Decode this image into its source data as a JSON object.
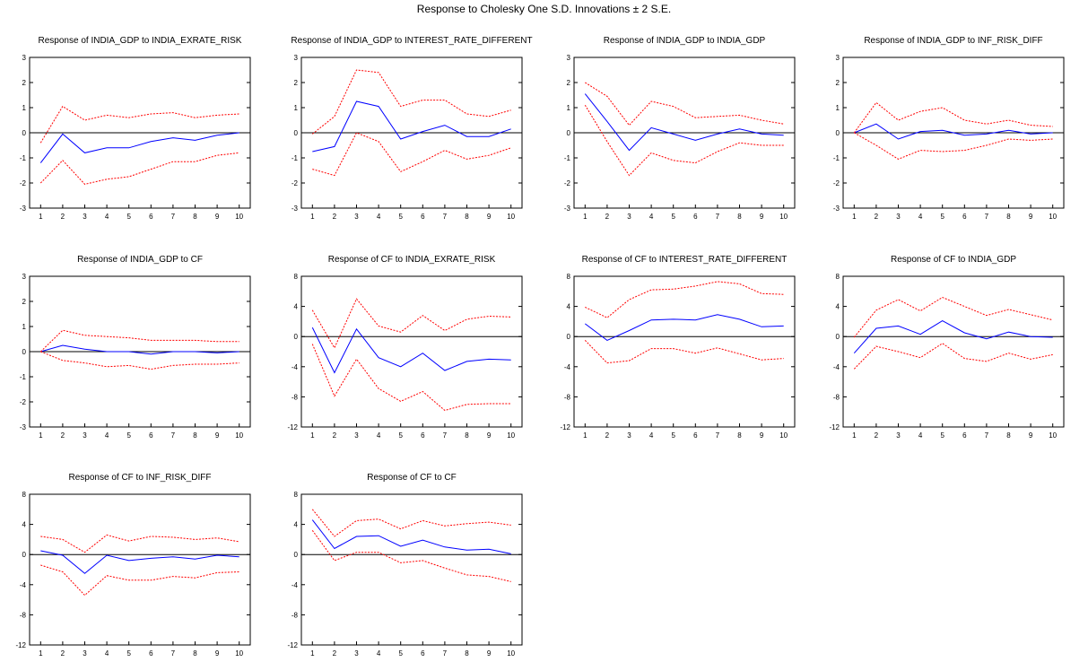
{
  "figure_title": "Response to Cholesky One S.D. Innovations ± 2 S.E.",
  "colors": {
    "response": "#0000ff",
    "bands": "#ff0000",
    "zero_line": "#000000",
    "frame": "#000000"
  },
  "chart_data": [
    {
      "type": "line",
      "title": "Response of INDIA_GDP to INDIA_EXRATE_RISK",
      "x": [
        1,
        2,
        3,
        4,
        5,
        6,
        7,
        8,
        9,
        10
      ],
      "ylim": [
        -3,
        3
      ],
      "yticks": [
        -3,
        -2,
        -1,
        0,
        1,
        2,
        3
      ],
      "series": [
        {
          "role": "response",
          "values": [
            -1.2,
            -0.05,
            -0.8,
            -0.6,
            -0.6,
            -0.35,
            -0.2,
            -0.3,
            -0.1,
            0.0
          ]
        },
        {
          "role": "upper",
          "values": [
            -0.4,
            1.05,
            0.5,
            0.7,
            0.6,
            0.75,
            0.8,
            0.6,
            0.7,
            0.75
          ]
        },
        {
          "role": "lower",
          "values": [
            -2.0,
            -1.1,
            -2.05,
            -1.85,
            -1.75,
            -1.45,
            -1.15,
            -1.15,
            -0.9,
            -0.8
          ]
        }
      ]
    },
    {
      "type": "line",
      "title": "Response of INDIA_GDP to INTEREST_RATE_DIFFERENT",
      "x": [
        1,
        2,
        3,
        4,
        5,
        6,
        7,
        8,
        9,
        10
      ],
      "ylim": [
        -3,
        3
      ],
      "yticks": [
        -3,
        -2,
        -1,
        0,
        1,
        2,
        3
      ],
      "series": [
        {
          "role": "response",
          "values": [
            -0.75,
            -0.55,
            1.25,
            1.05,
            -0.25,
            0.05,
            0.3,
            -0.15,
            -0.15,
            0.15
          ]
        },
        {
          "role": "upper",
          "values": [
            -0.05,
            0.65,
            2.5,
            2.4,
            1.05,
            1.3,
            1.3,
            0.75,
            0.65,
            0.9
          ]
        },
        {
          "role": "lower",
          "values": [
            -1.45,
            -1.7,
            0.0,
            -0.35,
            -1.55,
            -1.15,
            -0.7,
            -1.05,
            -0.9,
            -0.6
          ]
        }
      ]
    },
    {
      "type": "line",
      "title": "Response of INDIA_GDP to INDIA_GDP",
      "x": [
        1,
        2,
        3,
        4,
        5,
        6,
        7,
        8,
        9,
        10
      ],
      "ylim": [
        -3,
        3
      ],
      "yticks": [
        -3,
        -2,
        -1,
        0,
        1,
        2,
        3
      ],
      "series": [
        {
          "role": "response",
          "values": [
            1.55,
            0.45,
            -0.7,
            0.2,
            -0.05,
            -0.3,
            -0.05,
            0.15,
            -0.05,
            -0.1
          ]
        },
        {
          "role": "upper",
          "values": [
            2.0,
            1.45,
            0.3,
            1.25,
            1.05,
            0.6,
            0.65,
            0.7,
            0.5,
            0.35
          ]
        },
        {
          "role": "lower",
          "values": [
            1.1,
            -0.35,
            -1.7,
            -0.8,
            -1.1,
            -1.2,
            -0.75,
            -0.4,
            -0.5,
            -0.5
          ]
        }
      ]
    },
    {
      "type": "line",
      "title": "Response of INDIA_GDP to INF_RISK_DIFF",
      "x": [
        1,
        2,
        3,
        4,
        5,
        6,
        7,
        8,
        9,
        10
      ],
      "ylim": [
        -3,
        3
      ],
      "yticks": [
        -3,
        -2,
        -1,
        0,
        1,
        2,
        3
      ],
      "series": [
        {
          "role": "response",
          "values": [
            0.0,
            0.35,
            -0.25,
            0.05,
            0.1,
            -0.1,
            -0.05,
            0.1,
            -0.05,
            0.0
          ]
        },
        {
          "role": "upper",
          "values": [
            0.0,
            1.2,
            0.5,
            0.85,
            1.0,
            0.5,
            0.35,
            0.5,
            0.3,
            0.25
          ]
        },
        {
          "role": "lower",
          "values": [
            0.0,
            -0.5,
            -1.05,
            -0.7,
            -0.75,
            -0.7,
            -0.5,
            -0.25,
            -0.3,
            -0.25
          ]
        }
      ]
    },
    {
      "type": "line",
      "title": "Response of INDIA_GDP to CF",
      "x": [
        1,
        2,
        3,
        4,
        5,
        6,
        7,
        8,
        9,
        10
      ],
      "ylim": [
        -3,
        3
      ],
      "yticks": [
        -3,
        -2,
        -1,
        0,
        1,
        2,
        3
      ],
      "series": [
        {
          "role": "response",
          "values": [
            0.0,
            0.25,
            0.1,
            0.0,
            0.0,
            -0.1,
            0.0,
            0.0,
            -0.05,
            0.0
          ]
        },
        {
          "role": "upper",
          "values": [
            0.0,
            0.85,
            0.65,
            0.6,
            0.55,
            0.45,
            0.45,
            0.45,
            0.4,
            0.4
          ]
        },
        {
          "role": "lower",
          "values": [
            0.0,
            -0.35,
            -0.45,
            -0.6,
            -0.55,
            -0.7,
            -0.55,
            -0.5,
            -0.5,
            -0.45
          ]
        }
      ]
    },
    {
      "type": "line",
      "title": "Response of CF to INDIA_EXRATE_RISK",
      "x": [
        1,
        2,
        3,
        4,
        5,
        6,
        7,
        8,
        9,
        10
      ],
      "ylim": [
        -12,
        8
      ],
      "yticks": [
        -12,
        -8,
        -4,
        0,
        4,
        8
      ],
      "series": [
        {
          "role": "response",
          "values": [
            1.2,
            -4.8,
            1.0,
            -2.8,
            -4.0,
            -2.2,
            -4.5,
            -3.3,
            -3.0,
            -3.1
          ]
        },
        {
          "role": "upper",
          "values": [
            3.5,
            -1.5,
            5.0,
            1.4,
            0.6,
            2.8,
            0.8,
            2.3,
            2.7,
            2.6
          ]
        },
        {
          "role": "lower",
          "values": [
            -1.0,
            -7.9,
            -3.0,
            -6.9,
            -8.6,
            -7.3,
            -9.8,
            -9.0,
            -8.9,
            -8.9
          ]
        }
      ]
    },
    {
      "type": "line",
      "title": "Response of CF to INTEREST_RATE_DIFFERENT",
      "x": [
        1,
        2,
        3,
        4,
        5,
        6,
        7,
        8,
        9,
        10
      ],
      "ylim": [
        -12,
        8
      ],
      "yticks": [
        -12,
        -8,
        -4,
        0,
        4,
        8
      ],
      "series": [
        {
          "role": "response",
          "values": [
            1.7,
            -0.5,
            0.8,
            2.2,
            2.3,
            2.2,
            2.9,
            2.3,
            1.3,
            1.4
          ]
        },
        {
          "role": "upper",
          "values": [
            3.9,
            2.5,
            4.9,
            6.2,
            6.3,
            6.7,
            7.3,
            7.0,
            5.7,
            5.6
          ]
        },
        {
          "role": "lower",
          "values": [
            -0.5,
            -3.5,
            -3.2,
            -1.6,
            -1.6,
            -2.2,
            -1.5,
            -2.3,
            -3.1,
            -2.9
          ]
        }
      ]
    },
    {
      "type": "line",
      "title": "Response of CF to INDIA_GDP",
      "x": [
        1,
        2,
        3,
        4,
        5,
        6,
        7,
        8,
        9,
        10
      ],
      "ylim": [
        -12,
        8
      ],
      "yticks": [
        -12,
        -8,
        -4,
        0,
        4,
        8
      ],
      "series": [
        {
          "role": "response",
          "values": [
            -2.2,
            1.1,
            1.4,
            0.3,
            2.1,
            0.5,
            -0.3,
            0.6,
            0.0,
            -0.1
          ]
        },
        {
          "role": "upper",
          "values": [
            -0.1,
            3.5,
            4.9,
            3.4,
            5.2,
            4.0,
            2.8,
            3.6,
            2.9,
            2.2
          ]
        },
        {
          "role": "lower",
          "values": [
            -4.3,
            -1.3,
            -2.0,
            -2.8,
            -0.9,
            -2.9,
            -3.3,
            -2.2,
            -3.0,
            -2.4
          ]
        }
      ]
    },
    {
      "type": "line",
      "title": "Response of CF to INF_RISK_DIFF",
      "x": [
        1,
        2,
        3,
        4,
        5,
        6,
        7,
        8,
        9,
        10
      ],
      "ylim": [
        -12,
        8
      ],
      "yticks": [
        -12,
        -8,
        -4,
        0,
        4,
        8
      ],
      "series": [
        {
          "role": "response",
          "values": [
            0.5,
            -0.1,
            -2.5,
            -0.1,
            -0.8,
            -0.5,
            -0.3,
            -0.6,
            -0.1,
            -0.3
          ]
        },
        {
          "role": "upper",
          "values": [
            2.4,
            2.0,
            0.3,
            2.6,
            1.8,
            2.4,
            2.3,
            2.0,
            2.2,
            1.7
          ]
        },
        {
          "role": "lower",
          "values": [
            -1.4,
            -2.3,
            -5.4,
            -2.8,
            -3.4,
            -3.4,
            -2.9,
            -3.1,
            -2.4,
            -2.3
          ]
        }
      ]
    },
    {
      "type": "line",
      "title": "Response of CF to CF",
      "x": [
        1,
        2,
        3,
        4,
        5,
        6,
        7,
        8,
        9,
        10
      ],
      "ylim": [
        -12,
        8
      ],
      "yticks": [
        -12,
        -8,
        -4,
        0,
        4,
        8
      ],
      "series": [
        {
          "role": "response",
          "values": [
            4.6,
            0.8,
            2.4,
            2.5,
            1.1,
            1.9,
            1.0,
            0.6,
            0.7,
            0.1
          ]
        },
        {
          "role": "upper",
          "values": [
            6.0,
            2.4,
            4.5,
            4.7,
            3.4,
            4.5,
            3.8,
            4.1,
            4.3,
            3.9
          ]
        },
        {
          "role": "lower",
          "values": [
            3.2,
            -0.8,
            0.3,
            0.3,
            -1.1,
            -0.8,
            -1.8,
            -2.7,
            -2.9,
            -3.6
          ]
        }
      ]
    }
  ]
}
